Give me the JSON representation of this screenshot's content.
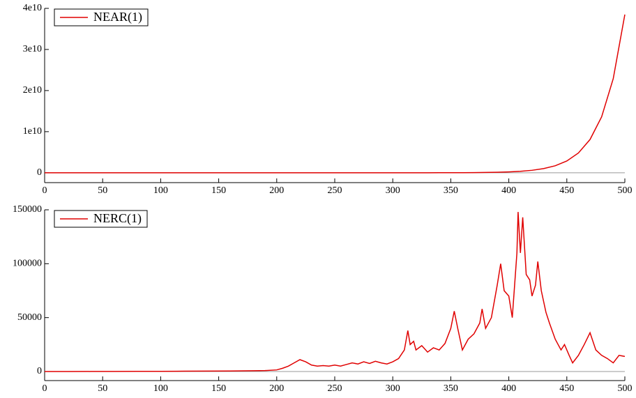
{
  "chart_data": [
    {
      "type": "line",
      "xlim": [
        0,
        500
      ],
      "xticks": [
        0,
        50,
        100,
        150,
        200,
        250,
        300,
        350,
        400,
        450,
        500
      ],
      "ylim": [
        -2400000000,
        40000000000
      ],
      "yticks": [
        0,
        {
          "value": 10000000000,
          "label": "1e10"
        },
        {
          "value": 20000000000,
          "label": "2e10"
        },
        {
          "value": 30000000000,
          "label": "3e10"
        },
        {
          "value": 40000000000,
          "label": "4e10"
        }
      ],
      "legend": "top-left",
      "x": [
        0,
        10,
        20,
        30,
        40,
        50,
        60,
        70,
        80,
        90,
        100,
        110,
        120,
        130,
        140,
        150,
        160,
        170,
        180,
        190,
        200,
        210,
        220,
        230,
        240,
        250,
        260,
        270,
        280,
        290,
        300,
        310,
        320,
        330,
        340,
        350,
        360,
        370,
        380,
        390,
        400,
        410,
        420,
        430,
        440,
        450,
        460,
        470,
        480,
        490,
        500
      ],
      "series": [
        {
          "name": "NEAR(1)",
          "color": "#e00000",
          "values": [
            0.2,
            0.3,
            0.5,
            0.9,
            1.5,
            2.5,
            4,
            7,
            12,
            21,
            35,
            60,
            100,
            170,
            290,
            480,
            810,
            1370,
            2300,
            3860,
            6500,
            10900,
            18300,
            31000,
            52000,
            87000,
            146000,
            246000,
            414000,
            696000,
            1170000,
            1970000,
            3320000,
            5580000,
            9380000,
            15800000,
            26500000,
            44600000,
            75000000,
            126000000,
            212000000,
            357000000,
            601000000,
            1011000000,
            1700000000,
            2860000000,
            4810000000,
            8090000000,
            13610000000,
            22890000000,
            38500000000
          ]
        }
      ]
    },
    {
      "type": "line",
      "xlim": [
        0,
        500
      ],
      "xticks": [
        0,
        50,
        100,
        150,
        200,
        250,
        300,
        350,
        400,
        450,
        500
      ],
      "ylim": [
        -8400,
        150000
      ],
      "yticks": [
        0,
        50000,
        100000,
        150000
      ],
      "legend": "top-left",
      "x": [
        0,
        20,
        40,
        60,
        80,
        100,
        120,
        140,
        160,
        180,
        190,
        200,
        205,
        210,
        215,
        220,
        225,
        230,
        235,
        240,
        245,
        250,
        255,
        260,
        265,
        270,
        275,
        280,
        285,
        290,
        295,
        300,
        305,
        310,
        313,
        315,
        318,
        320,
        325,
        330,
        335,
        340,
        345,
        350,
        353,
        356,
        360,
        365,
        370,
        375,
        377,
        380,
        385,
        390,
        393,
        396,
        400,
        403,
        407,
        408,
        410,
        412,
        415,
        418,
        420,
        423,
        425,
        428,
        432,
        435,
        440,
        445,
        448,
        452,
        455,
        460,
        465,
        470,
        475,
        480,
        485,
        490,
        495,
        500
      ],
      "series": [
        {
          "name": "NERC(1)",
          "color": "#e00000",
          "values": [
            0,
            0,
            50,
            100,
            150,
            200,
            300,
            400,
            500,
            700,
            900,
            1500,
            3000,
            5000,
            8000,
            11000,
            9000,
            6000,
            5000,
            5500,
            5000,
            6000,
            5000,
            6500,
            8000,
            7000,
            9000,
            7500,
            9500,
            8000,
            7000,
            9000,
            12000,
            20000,
            38000,
            25000,
            28000,
            20000,
            24000,
            18000,
            22000,
            20000,
            26000,
            40000,
            56000,
            40000,
            20000,
            30000,
            35000,
            45000,
            58000,
            40000,
            50000,
            80000,
            100000,
            75000,
            70000,
            50000,
            110000,
            148000,
            110000,
            143000,
            90000,
            85000,
            70000,
            80000,
            102000,
            75000,
            55000,
            45000,
            30000,
            20000,
            25000,
            15000,
            8000,
            15000,
            25000,
            36000,
            20000,
            15000,
            12000,
            8000,
            15000,
            14000
          ]
        }
      ]
    }
  ]
}
